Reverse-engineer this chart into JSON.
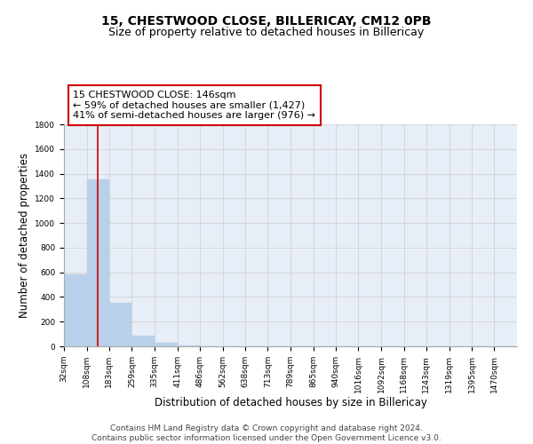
{
  "title": "15, CHESTWOOD CLOSE, BILLERICAY, CM12 0PB",
  "subtitle": "Size of property relative to detached houses in Billericay",
  "xlabel": "Distribution of detached houses by size in Billericay",
  "ylabel": "Number of detached properties",
  "bar_edges": [
    32,
    108,
    183,
    259,
    335,
    411,
    486,
    562,
    638,
    713,
    789,
    865,
    940,
    1016,
    1092,
    1168,
    1243,
    1319,
    1395,
    1470,
    1546
  ],
  "bar_heights": [
    585,
    1355,
    350,
    90,
    30,
    5,
    2,
    0,
    0,
    0,
    0,
    0,
    0,
    0,
    0,
    0,
    0,
    0,
    0,
    0
  ],
  "bar_color": "#b8d0ea",
  "vline_color": "#cc0000",
  "vline_x": 146,
  "annotation_lines": [
    "15 CHESTWOOD CLOSE: 146sqm",
    "← 59% of detached houses are smaller (1,427)",
    "41% of semi-detached houses are larger (976) →"
  ],
  "ylim": [
    0,
    1800
  ],
  "yticks": [
    0,
    200,
    400,
    600,
    800,
    1000,
    1200,
    1400,
    1600,
    1800
  ],
  "grid_color": "#cccccc",
  "background_color": "#e8eef8",
  "footer_line1": "Contains HM Land Registry data © Crown copyright and database right 2024.",
  "footer_line2": "Contains public sector information licensed under the Open Government Licence v3.0.",
  "title_fontsize": 10,
  "subtitle_fontsize": 9,
  "annotation_fontsize": 8,
  "tick_label_fontsize": 6.5,
  "axis_label_fontsize": 8.5,
  "ylabel_fontsize": 8.5,
  "footer_fontsize": 6.5
}
